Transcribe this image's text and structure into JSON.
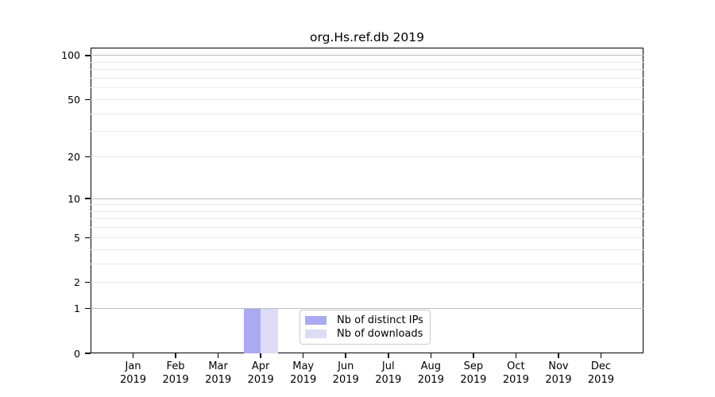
{
  "figure": {
    "background": "#ffffff"
  },
  "chart_data": {
    "type": "bar",
    "title": "org.Hs.ref.db 2019",
    "categories": [
      "Jan 2019",
      "Feb 2019",
      "Mar 2019",
      "Apr 2019",
      "May 2019",
      "Jun 2019",
      "Jul 2019",
      "Aug 2019",
      "Sep 2019",
      "Oct 2019",
      "Nov 2019",
      "Dec 2019"
    ],
    "series": [
      {
        "name": "Nb of distinct IPs",
        "color": "#aaaaf2",
        "values": [
          0,
          0,
          0,
          1,
          0,
          0,
          0,
          0,
          0,
          0,
          0,
          0
        ]
      },
      {
        "name": "Nb of downloads",
        "color": "#dcdcf7",
        "values": [
          0,
          0,
          0,
          1,
          0,
          0,
          0,
          0,
          0,
          0,
          0,
          0
        ]
      }
    ],
    "xlabel": "",
    "ylabel": "",
    "yscale": "log1p",
    "ylim": [
      0,
      113
    ],
    "yticks": [
      0,
      1,
      2,
      5,
      10,
      20,
      50,
      100
    ],
    "major_gridlines": [
      1,
      10,
      100
    ],
    "minor_gridlines": [
      2,
      3,
      4,
      5,
      6,
      7,
      8,
      9,
      20,
      30,
      40,
      50,
      60,
      70,
      80,
      90
    ],
    "grid": true,
    "legend_position": "lower center",
    "colors": {
      "grid_major": "#bcbcbc",
      "grid_minor": "#ebebeb",
      "axis": "#000000",
      "text": "#000000"
    }
  }
}
